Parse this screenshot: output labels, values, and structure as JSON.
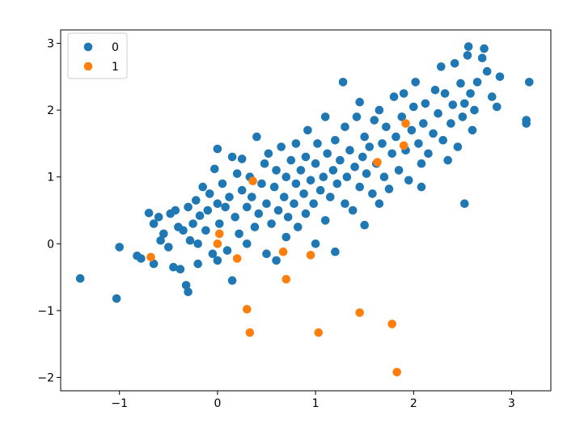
{
  "chart_data": {
    "type": "scatter",
    "title": "",
    "xlabel": "",
    "ylabel": "",
    "xlim": [
      -1.6,
      3.4
    ],
    "ylim": [
      -2.2,
      3.2
    ],
    "x_ticks": [
      -1,
      0,
      1,
      2,
      3
    ],
    "y_ticks": [
      -2,
      -1,
      0,
      1,
      2,
      3
    ],
    "x_tick_labels": [
      "−1",
      "0",
      "1",
      "2",
      "3"
    ],
    "y_tick_labels": [
      "−2",
      "−1",
      "0",
      "1",
      "2",
      "3"
    ],
    "grid": false,
    "legend_position": "top-left",
    "series": [
      {
        "name": "0",
        "color": "#1f77b4",
        "points": [
          [
            -1.4,
            -0.52
          ],
          [
            -1.03,
            -0.82
          ],
          [
            -1.0,
            -0.05
          ],
          [
            -0.82,
            -0.18
          ],
          [
            -0.78,
            -0.22
          ],
          [
            -0.7,
            0.46
          ],
          [
            -0.65,
            0.3
          ],
          [
            -0.65,
            -0.3
          ],
          [
            -0.6,
            0.4
          ],
          [
            -0.58,
            0.05
          ],
          [
            -0.55,
            0.15
          ],
          [
            -0.5,
            -0.05
          ],
          [
            -0.48,
            0.45
          ],
          [
            -0.45,
            -0.35
          ],
          [
            -0.43,
            0.5
          ],
          [
            -0.4,
            0.25
          ],
          [
            -0.38,
            -0.38
          ],
          [
            -0.35,
            0.2
          ],
          [
            -0.32,
            -0.62
          ],
          [
            -0.3,
            0.55
          ],
          [
            -0.3,
            -0.72
          ],
          [
            -0.28,
            0.05
          ],
          [
            -0.25,
            0.3
          ],
          [
            -0.22,
            0.65
          ],
          [
            -0.2,
            0.0
          ],
          [
            -0.2,
            -0.3
          ],
          [
            -0.18,
            0.42
          ],
          [
            -0.15,
            0.85
          ],
          [
            -0.12,
            0.2
          ],
          [
            -0.1,
            0.5
          ],
          [
            -0.08,
            0.75
          ],
          [
            -0.05,
            -0.15
          ],
          [
            -0.03,
            1.12
          ],
          [
            0.0,
            1.42
          ],
          [
            0.0,
            0.6
          ],
          [
            0.0,
            -0.25
          ],
          [
            0.02,
            0.3
          ],
          [
            0.05,
            0.9
          ],
          [
            0.08,
            0.55
          ],
          [
            0.1,
            -0.1
          ],
          [
            0.12,
            0.7
          ],
          [
            0.15,
            1.3
          ],
          [
            0.15,
            -0.55
          ],
          [
            0.18,
            0.4
          ],
          [
            0.2,
            1.05
          ],
          [
            0.22,
            0.15
          ],
          [
            0.25,
            0.8
          ],
          [
            0.25,
            1.27
          ],
          [
            0.3,
            0.55
          ],
          [
            0.3,
            0.0
          ],
          [
            0.33,
            1.0
          ],
          [
            0.35,
            0.7
          ],
          [
            0.38,
            0.25
          ],
          [
            0.4,
            1.6
          ],
          [
            0.42,
            0.45
          ],
          [
            0.45,
            0.9
          ],
          [
            0.48,
            1.2
          ],
          [
            0.5,
            0.6
          ],
          [
            0.5,
            -0.15
          ],
          [
            0.52,
            1.35
          ],
          [
            0.55,
            0.3
          ],
          [
            0.58,
            0.85
          ],
          [
            0.6,
            1.1
          ],
          [
            0.6,
            -0.25
          ],
          [
            0.62,
            0.5
          ],
          [
            0.65,
            1.45
          ],
          [
            0.68,
            0.7
          ],
          [
            0.7,
            1.0
          ],
          [
            0.7,
            0.1
          ],
          [
            0.72,
            0.4
          ],
          [
            0.75,
            1.25
          ],
          [
            0.78,
            0.6
          ],
          [
            0.8,
            0.9
          ],
          [
            0.8,
            1.5
          ],
          [
            0.82,
            0.25
          ],
          [
            0.85,
            1.1
          ],
          [
            0.88,
            0.75
          ],
          [
            0.9,
            1.3
          ],
          [
            0.9,
            0.45
          ],
          [
            0.92,
            1.7
          ],
          [
            0.95,
            0.95
          ],
          [
            0.98,
            0.6
          ],
          [
            1.0,
            1.2
          ],
          [
            1.0,
            0.0
          ],
          [
            1.02,
            1.5
          ],
          [
            1.05,
            0.8
          ],
          [
            1.08,
            1.0
          ],
          [
            1.1,
            0.35
          ],
          [
            1.1,
            1.9
          ],
          [
            1.12,
            1.35
          ],
          [
            1.15,
            0.7
          ],
          [
            1.18,
            1.1
          ],
          [
            1.2,
            1.55
          ],
          [
            1.2,
            -0.12
          ],
          [
            1.22,
            0.9
          ],
          [
            1.25,
            1.25
          ],
          [
            1.28,
            2.42
          ],
          [
            1.3,
            0.6
          ],
          [
            1.3,
            1.75
          ],
          [
            1.32,
            1.0
          ],
          [
            1.35,
            1.4
          ],
          [
            1.38,
            0.5
          ],
          [
            1.4,
            1.15
          ],
          [
            1.42,
            1.9
          ],
          [
            1.45,
            0.85
          ],
          [
            1.45,
            2.12
          ],
          [
            1.48,
            1.3
          ],
          [
            1.5,
            0.28
          ],
          [
            1.5,
            1.6
          ],
          [
            1.52,
            1.05
          ],
          [
            1.55,
            1.45
          ],
          [
            1.58,
            0.75
          ],
          [
            1.6,
            1.85
          ],
          [
            1.62,
            1.2
          ],
          [
            1.65,
            2.0
          ],
          [
            1.65,
            0.6
          ],
          [
            1.68,
            1.5
          ],
          [
            1.7,
            1.0
          ],
          [
            1.72,
            1.75
          ],
          [
            1.75,
            0.82
          ],
          [
            1.78,
            1.35
          ],
          [
            1.8,
            2.2
          ],
          [
            1.82,
            1.6
          ],
          [
            1.85,
            1.1
          ],
          [
            1.88,
            1.9
          ],
          [
            1.9,
            2.25
          ],
          [
            1.92,
            1.4
          ],
          [
            1.95,
            0.95
          ],
          [
            1.98,
            1.7
          ],
          [
            2.0,
            2.05
          ],
          [
            2.02,
            2.42
          ],
          [
            2.05,
            1.5
          ],
          [
            2.08,
            1.2
          ],
          [
            2.08,
            0.85
          ],
          [
            2.1,
            1.8
          ],
          [
            2.12,
            2.1
          ],
          [
            2.15,
            1.35
          ],
          [
            2.2,
            1.65
          ],
          [
            2.22,
            2.3
          ],
          [
            2.25,
            1.95
          ],
          [
            2.28,
            2.65
          ],
          [
            2.3,
            1.55
          ],
          [
            2.32,
            2.25
          ],
          [
            2.35,
            1.25
          ],
          [
            2.38,
            1.8
          ],
          [
            2.4,
            2.08
          ],
          [
            2.42,
            2.7
          ],
          [
            2.45,
            1.45
          ],
          [
            2.48,
            2.4
          ],
          [
            2.5,
            1.9
          ],
          [
            2.52,
            2.1
          ],
          [
            2.52,
            0.6
          ],
          [
            2.55,
            2.82
          ],
          [
            2.56,
            2.95
          ],
          [
            2.58,
            2.25
          ],
          [
            2.6,
            1.7
          ],
          [
            2.62,
            2.0
          ],
          [
            2.65,
            2.42
          ],
          [
            2.7,
            2.78
          ],
          [
            2.72,
            2.92
          ],
          [
            2.75,
            2.58
          ],
          [
            2.8,
            2.2
          ],
          [
            2.85,
            2.05
          ],
          [
            2.88,
            2.5
          ],
          [
            3.15,
            1.85
          ],
          [
            3.15,
            1.8
          ],
          [
            3.18,
            2.42
          ]
        ]
      },
      {
        "name": "1",
        "color": "#ff7f0e",
        "points": [
          [
            -0.68,
            -0.2
          ],
          [
            0.0,
            0.0
          ],
          [
            0.02,
            0.15
          ],
          [
            0.2,
            -0.22
          ],
          [
            0.3,
            -0.98
          ],
          [
            0.33,
            -1.33
          ],
          [
            0.36,
            0.94
          ],
          [
            0.67,
            -0.12
          ],
          [
            0.7,
            -0.53
          ],
          [
            0.95,
            -0.17
          ],
          [
            1.03,
            -1.33
          ],
          [
            1.45,
            -1.03
          ],
          [
            1.63,
            1.22
          ],
          [
            1.78,
            -1.2
          ],
          [
            1.83,
            -1.92
          ],
          [
            1.9,
            1.47
          ],
          [
            1.92,
            1.8
          ]
        ]
      }
    ]
  }
}
